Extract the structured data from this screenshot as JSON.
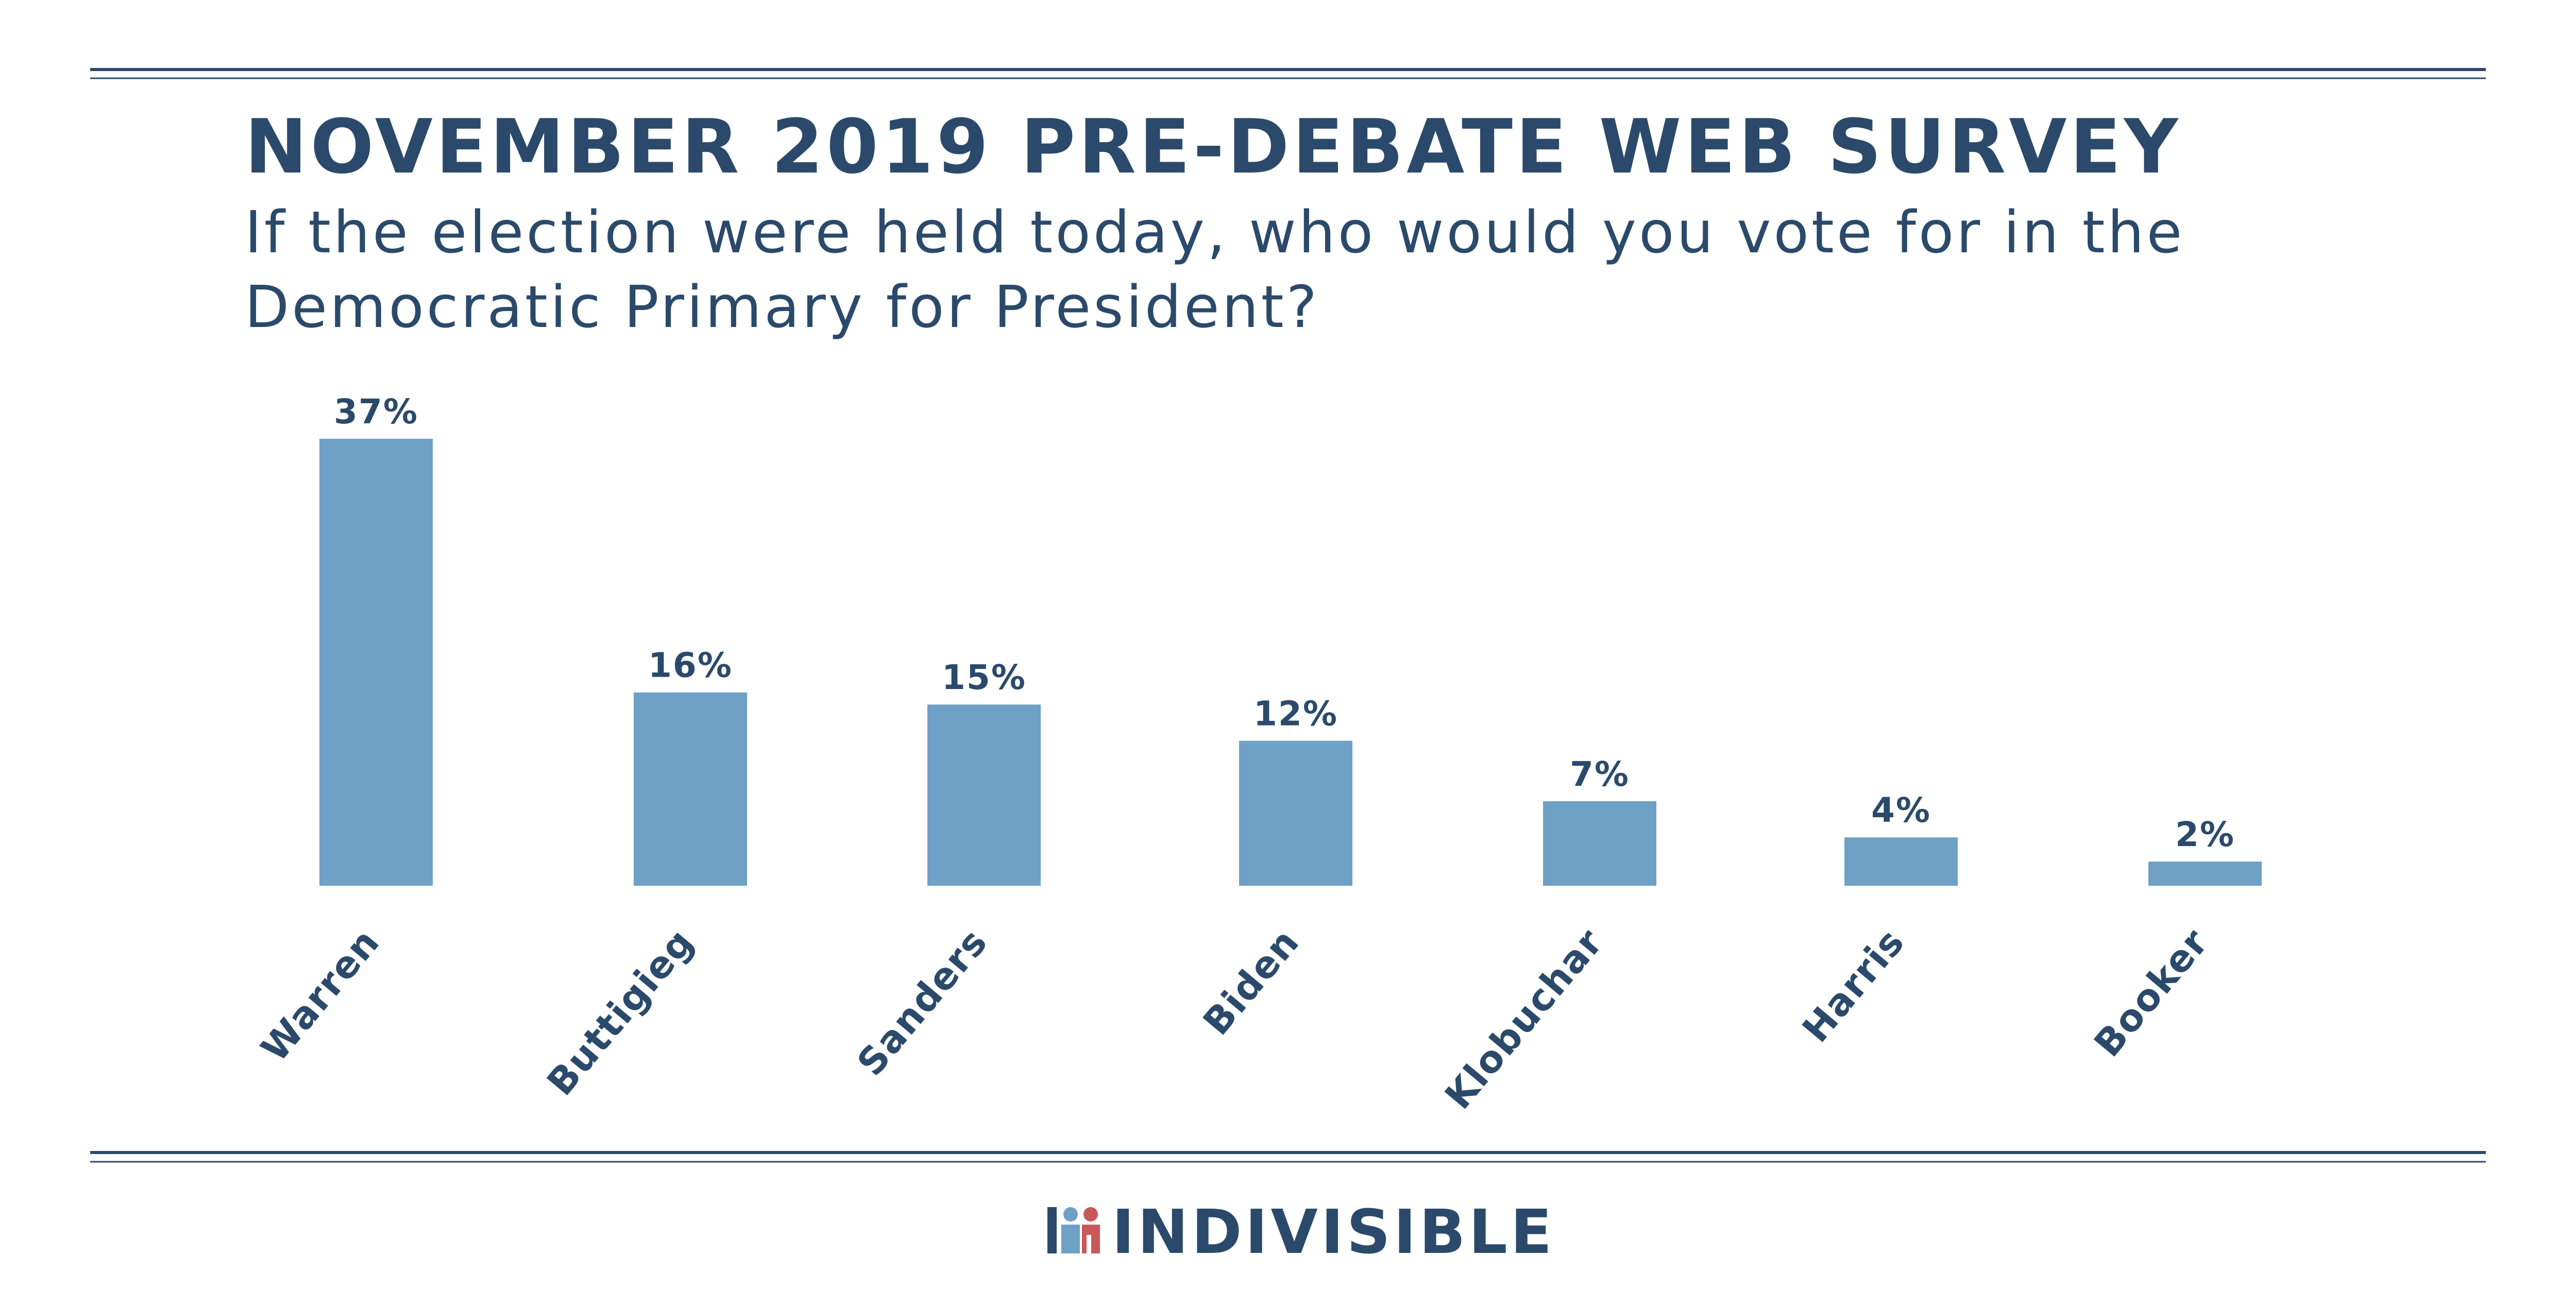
{
  "colors": {
    "navy": "#2b4a6b",
    "bar": "#6fa0c6",
    "logo_red": "#c9585a",
    "logo_blue": "#6fa0c6"
  },
  "header": {
    "title": "NOVEMBER 2019 PRE-DEBATE WEB SURVEY",
    "subtitle_line1": "If the election were held today, who would you vote for in the",
    "subtitle_line2": "Democratic Primary for President?"
  },
  "footer": {
    "brand": "INDIVISIBLE"
  },
  "chart_data": {
    "type": "bar",
    "title": "NOVEMBER 2019 PRE-DEBATE WEB SURVEY",
    "subtitle": "If the election were held today, who would you vote for in the Democratic Primary for President?",
    "categories": [
      "Warren",
      "Buttigieg",
      "Sanders",
      "Biden",
      "Klobuchar",
      "Harris",
      "Booker"
    ],
    "values": [
      37,
      16,
      15,
      12,
      7,
      4,
      2
    ],
    "data_labels": [
      "37%",
      "16%",
      "15%",
      "12%",
      "7%",
      "4%",
      "2%"
    ],
    "unit": "%",
    "ylim": [
      0,
      37
    ],
    "grid": false,
    "legend": "none"
  }
}
